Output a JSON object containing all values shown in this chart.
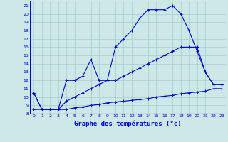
{
  "title": "Graphe des températures (°c)",
  "bg_color": "#cce8e8",
  "grid_color": "#aacccc",
  "line_color": "#0000cc",
  "xlim": [
    -0.5,
    23.5
  ],
  "ylim": [
    8,
    21.5
  ],
  "xticks": [
    0,
    1,
    2,
    3,
    4,
    5,
    6,
    7,
    8,
    9,
    10,
    11,
    12,
    13,
    14,
    15,
    16,
    17,
    18,
    19,
    20,
    21,
    22,
    23
  ],
  "yticks": [
    8,
    9,
    10,
    11,
    12,
    13,
    14,
    15,
    16,
    17,
    18,
    19,
    20,
    21
  ],
  "line1_x": [
    0,
    1,
    2,
    3,
    4,
    5,
    6,
    7,
    8,
    9,
    10,
    11,
    12,
    13,
    14,
    15,
    16,
    17,
    18,
    19,
    20,
    21,
    22,
    23
  ],
  "line1_y": [
    10.5,
    8.5,
    8.5,
    8.5,
    12.0,
    12.0,
    12.5,
    14.5,
    12.0,
    12.0,
    16.0,
    17.0,
    18.0,
    19.5,
    20.5,
    20.5,
    20.5,
    21.0,
    20.0,
    18.0,
    15.5,
    13.0,
    11.5,
    11.5
  ],
  "line2_x": [
    0,
    1,
    2,
    3,
    4,
    5,
    6,
    7,
    8,
    9,
    10,
    11,
    12,
    13,
    14,
    15,
    16,
    17,
    18,
    19,
    20,
    21,
    22,
    23
  ],
  "line2_y": [
    10.5,
    8.5,
    8.5,
    8.5,
    9.5,
    10.0,
    10.5,
    11.0,
    11.5,
    12.0,
    12.0,
    12.5,
    13.0,
    13.5,
    14.0,
    14.5,
    15.0,
    15.5,
    16.0,
    16.0,
    16.0,
    13.0,
    11.5,
    11.5
  ],
  "line3_x": [
    0,
    1,
    2,
    3,
    4,
    5,
    6,
    7,
    8,
    9,
    10,
    11,
    12,
    13,
    14,
    15,
    16,
    17,
    18,
    19,
    20,
    21,
    22,
    23
  ],
  "line3_y": [
    8.5,
    8.5,
    8.5,
    8.5,
    8.5,
    8.7,
    8.8,
    9.0,
    9.1,
    9.3,
    9.4,
    9.5,
    9.6,
    9.7,
    9.8,
    10.0,
    10.1,
    10.2,
    10.4,
    10.5,
    10.6,
    10.7,
    11.0,
    11.0
  ]
}
